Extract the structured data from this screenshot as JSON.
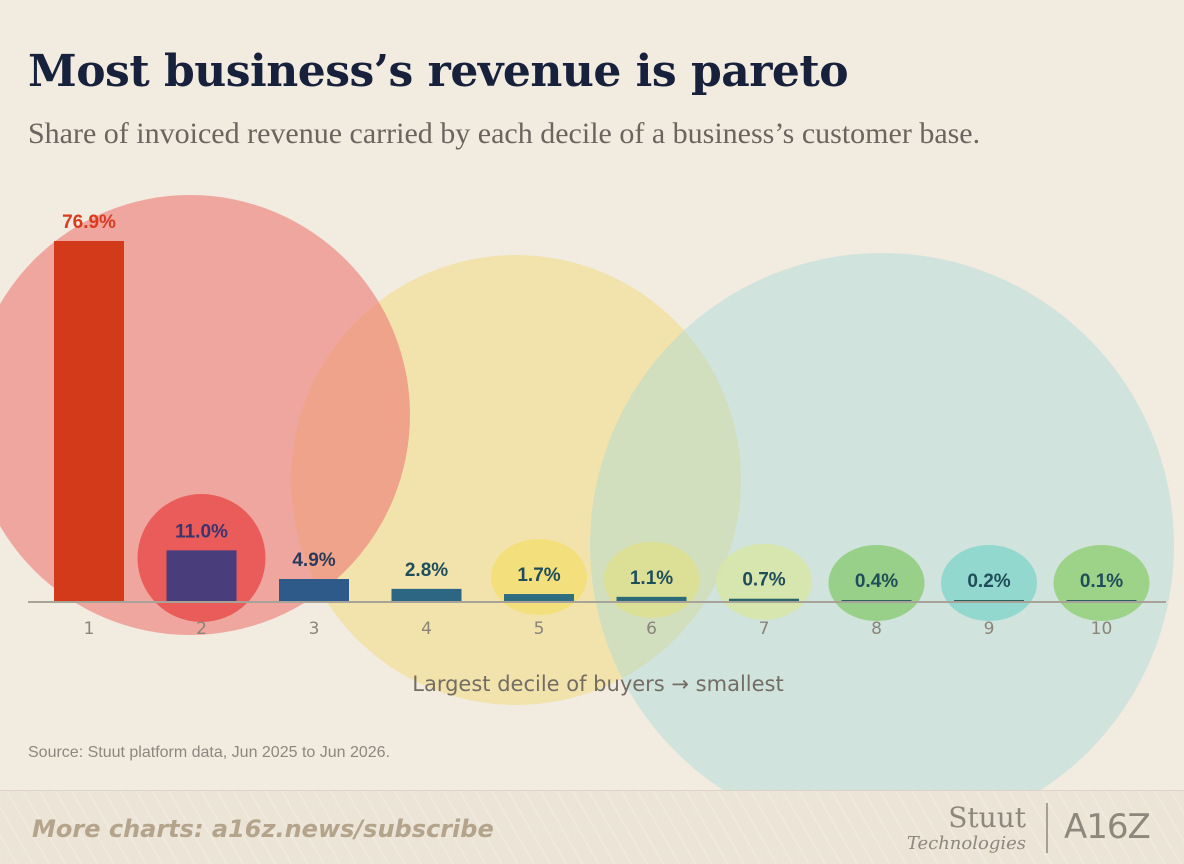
{
  "title": "Most business’s revenue is pareto",
  "subtitle": "Share of invoiced revenue carried by each decile of a business’s customer base.",
  "source": "Source: Stuut platform data, Jun 2025 to Jun 2026.",
  "footer": {
    "link_text": "More charts: a16z.news/subscribe",
    "logo_stuut_word": "Stuut",
    "logo_stuut_sub": "Technologies",
    "logo_a16z": "A16Z"
  },
  "chart_data": {
    "type": "bar",
    "title": "Most business’s revenue is pareto",
    "subtitle": "Share of invoiced revenue carried by each decile of a business’s customer base.",
    "xlabel": "Largest decile of buyers → smallest",
    "ylabel": "",
    "categories": [
      "1",
      "2",
      "3",
      "4",
      "5",
      "6",
      "7",
      "8",
      "9",
      "10"
    ],
    "values": [
      76.9,
      11.0,
      4.9,
      2.8,
      1.7,
      1.1,
      0.7,
      0.4,
      0.2,
      0.1
    ],
    "data_labels": [
      "76.9%",
      "11.0%",
      "4.9%",
      "2.8%",
      "1.7%",
      "1.1%",
      "0.7%",
      "0.4%",
      "0.2%",
      "0.1%"
    ],
    "ylim": [
      0,
      76.9
    ],
    "grid": false,
    "bar_colors": [
      "#d33a1a",
      "#4a3d7c",
      "#2e5a8a",
      "#2c6682",
      "#2e6e80",
      "#2c6a78",
      "#2a6668",
      "#2a6262",
      "#2a6262",
      "#2a6262"
    ],
    "highlight_colors": [
      "#ef8f86",
      "#e84f4c",
      "#eedf90",
      "#eedf90",
      "#f3df6c",
      "#dfe089",
      "#d9e6a0",
      "#86c86d",
      "#7fd4c9",
      "#8ccc6d"
    ],
    "label_colors": [
      "#d93a20",
      "#3c3470",
      "#2c3a5a",
      "#1f4d5a",
      "#1f4d5a",
      "#1f4d5a",
      "#1f4d5a",
      "#1f4d5a",
      "#1f4d5a",
      "#1f4d5a"
    ]
  }
}
